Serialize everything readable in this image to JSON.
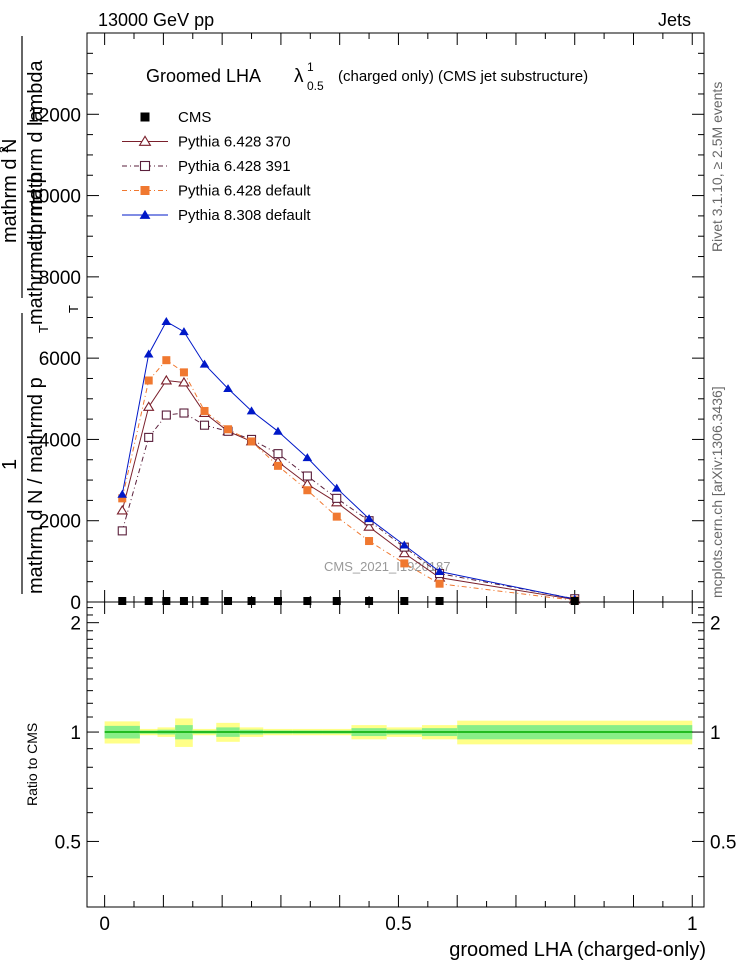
{
  "header": {
    "left": "13000 GeV pp",
    "right": "Jets"
  },
  "side_labels": {
    "rivet": "Rivet 3.1.10, ≥ 2.5M events",
    "mcplots": "mcplots.cern.ch [arXiv:1306.3436]"
  },
  "watermark": "CMS_2021_I1920187",
  "chart_data": [
    {
      "type": "line",
      "title": "Groomed LHA",
      "title_symbol": "λ",
      "title_symbol_sup": "1",
      "title_symbol_sub": "0.5",
      "title_suffix": "(charged only) (CMS jet substructure)",
      "ylabel_lines": [
        "1",
        "mathrm d N / mathrmd p",
        "T",
        "mathrmd p",
        "mathrm d N",
        "2",
        "mathrm d lambda",
        "mathrm d p",
        "T"
      ],
      "xlabel": "groomed LHA (charged-only)",
      "xlim": [
        -0.03,
        1.02
      ],
      "ylim": [
        0,
        14000
      ],
      "y_ticks": [
        0,
        2000,
        4000,
        6000,
        8000,
        10000,
        12000
      ],
      "y_tick_labels": [
        "0",
        "2000",
        "4000",
        "6000",
        "8000",
        "10000",
        "12000"
      ],
      "grid": false,
      "legend_position": "top-left",
      "x": [
        0.03,
        0.075,
        0.105,
        0.135,
        0.17,
        0.21,
        0.25,
        0.295,
        0.345,
        0.395,
        0.45,
        0.51,
        0.57,
        0.8
      ],
      "series": [
        {
          "name": "CMS",
          "color": "#000000",
          "marker": "filled-square",
          "line": "none",
          "values": [
            0,
            0,
            0,
            0,
            0,
            0,
            0,
            0,
            0,
            0,
            0,
            0,
            0,
            0
          ]
        },
        {
          "name": "Pythia 6.428 370",
          "color": "#7a1f2b",
          "marker": "open-triangle",
          "line": "solid",
          "values": [
            2250,
            4800,
            5450,
            5400,
            4650,
            4200,
            3950,
            3450,
            2900,
            2450,
            1850,
            1200,
            600,
            60
          ]
        },
        {
          "name": "Pythia 6.428 391",
          "color": "#5a1f3b",
          "marker": "open-square",
          "line": "dash-dot",
          "values": [
            1750,
            4050,
            4600,
            4650,
            4350,
            4200,
            4000,
            3650,
            3100,
            2550,
            2000,
            1350,
            700,
            80
          ]
        },
        {
          "name": "Pythia 6.428 default",
          "color": "#f07830",
          "marker": "filled-square",
          "line": "dash-dot",
          "values": [
            2550,
            5450,
            5950,
            5650,
            4700,
            4250,
            3950,
            3350,
            2750,
            2100,
            1500,
            950,
            450,
            40
          ]
        },
        {
          "name": "Pythia 8.308 default",
          "color": "#0018c8",
          "marker": "filled-triangle",
          "line": "solid",
          "values": [
            2650,
            6100,
            6900,
            6650,
            5850,
            5250,
            4700,
            4200,
            3550,
            2800,
            2050,
            1400,
            750,
            70
          ]
        }
      ]
    },
    {
      "type": "area",
      "ylabel": "Ratio to CMS",
      "xlim": [
        -0.03,
        1.02
      ],
      "ylim": [
        0.33,
        2.28
      ],
      "y_ticks": [
        0.5,
        1,
        2
      ],
      "y_tick_labels": [
        "0.5",
        "1",
        "2"
      ],
      "x_ticks": [
        0,
        0.5,
        1
      ],
      "x_tick_labels": [
        "0",
        "0.5",
        "1"
      ],
      "band_colors": {
        "outer": "#ffff88",
        "inner": "#88ee88",
        "line": "#00aa00"
      },
      "bins": [
        {
          "lo": 0.0,
          "hi": 0.06,
          "inner": 0.04,
          "outer": 0.07
        },
        {
          "lo": 0.06,
          "hi": 0.09,
          "inner": 0.01,
          "outer": 0.02
        },
        {
          "lo": 0.09,
          "hi": 0.12,
          "inner": 0.015,
          "outer": 0.03
        },
        {
          "lo": 0.12,
          "hi": 0.15,
          "inner": 0.045,
          "outer": 0.09
        },
        {
          "lo": 0.15,
          "hi": 0.19,
          "inner": 0.01,
          "outer": 0.02
        },
        {
          "lo": 0.19,
          "hi": 0.23,
          "inner": 0.03,
          "outer": 0.06
        },
        {
          "lo": 0.23,
          "hi": 0.27,
          "inner": 0.015,
          "outer": 0.03
        },
        {
          "lo": 0.27,
          "hi": 0.32,
          "inner": 0.01,
          "outer": 0.02
        },
        {
          "lo": 0.32,
          "hi": 0.37,
          "inner": 0.01,
          "outer": 0.02
        },
        {
          "lo": 0.37,
          "hi": 0.42,
          "inner": 0.01,
          "outer": 0.02
        },
        {
          "lo": 0.42,
          "hi": 0.48,
          "inner": 0.025,
          "outer": 0.045
        },
        {
          "lo": 0.48,
          "hi": 0.54,
          "inner": 0.015,
          "outer": 0.03
        },
        {
          "lo": 0.54,
          "hi": 0.6,
          "inner": 0.025,
          "outer": 0.045
        },
        {
          "lo": 0.6,
          "hi": 1.0,
          "inner": 0.045,
          "outer": 0.075
        }
      ]
    }
  ]
}
